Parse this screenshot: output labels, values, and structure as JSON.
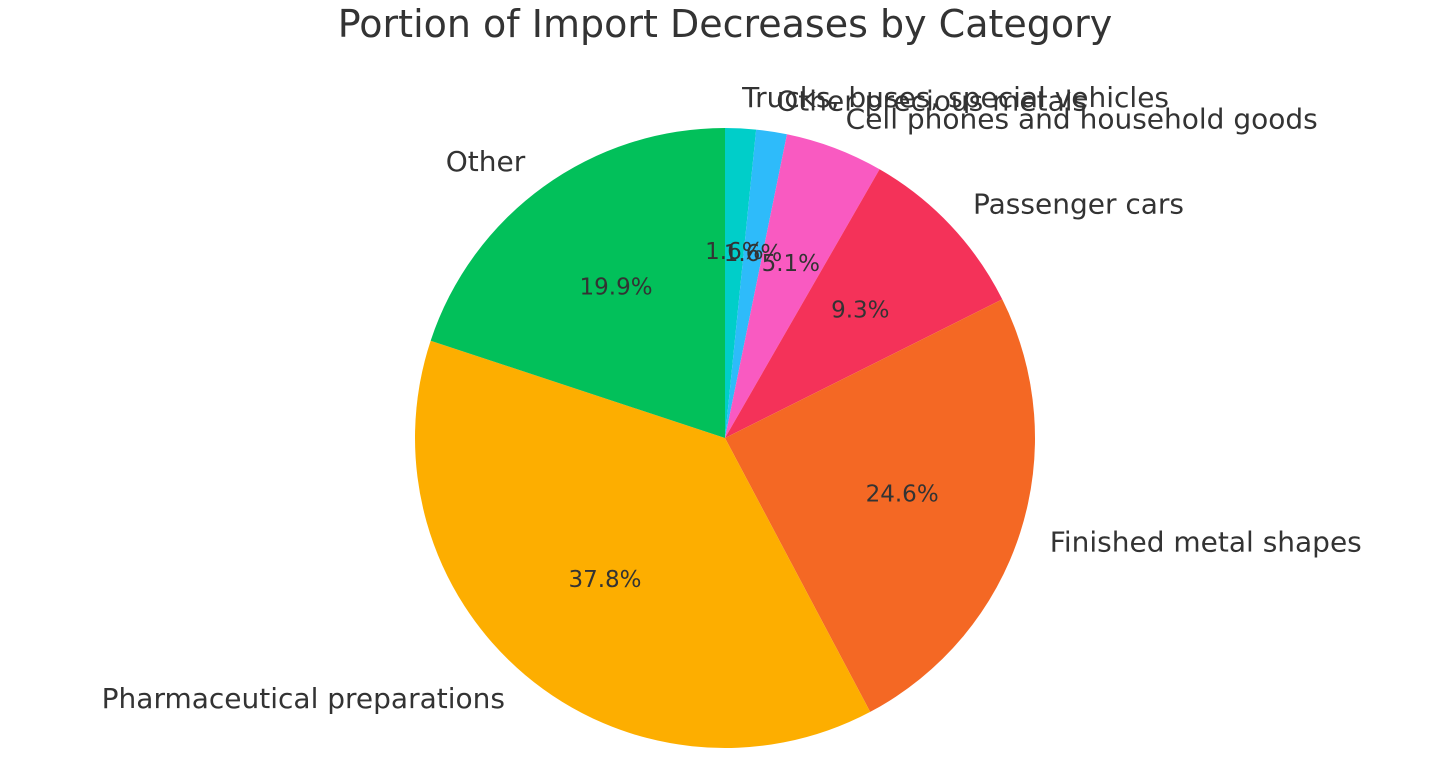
{
  "chart_data": {
    "type": "pie",
    "title": "Portion of Import Decreases by Category",
    "start_angle_deg": 90,
    "direction": "clockwise",
    "slices": [
      {
        "label": "Trucks, buses, special vehicles",
        "value": 1.6,
        "pct_label": "1.6%",
        "color": "#00CEC9"
      },
      {
        "label": "Other precious metals",
        "value": 1.6,
        "pct_label": "1.6%",
        "color": "#2EBBFA"
      },
      {
        "label": "Cell phones and household goods",
        "value": 5.1,
        "pct_label": "5.1%",
        "color": "#F95AC1"
      },
      {
        "label": "Passenger cars",
        "value": 9.3,
        "pct_label": "9.3%",
        "color": "#F43259"
      },
      {
        "label": "Finished metal shapes",
        "value": 24.6,
        "pct_label": "24.6%",
        "color": "#F46824"
      },
      {
        "label": "Pharmaceutical preparations",
        "value": 37.8,
        "pct_label": "37.8%",
        "color": "#FDAE00"
      },
      {
        "label": "Other",
        "value": 19.9,
        "pct_label": "19.9%",
        "color": "#02C05A"
      }
    ]
  }
}
